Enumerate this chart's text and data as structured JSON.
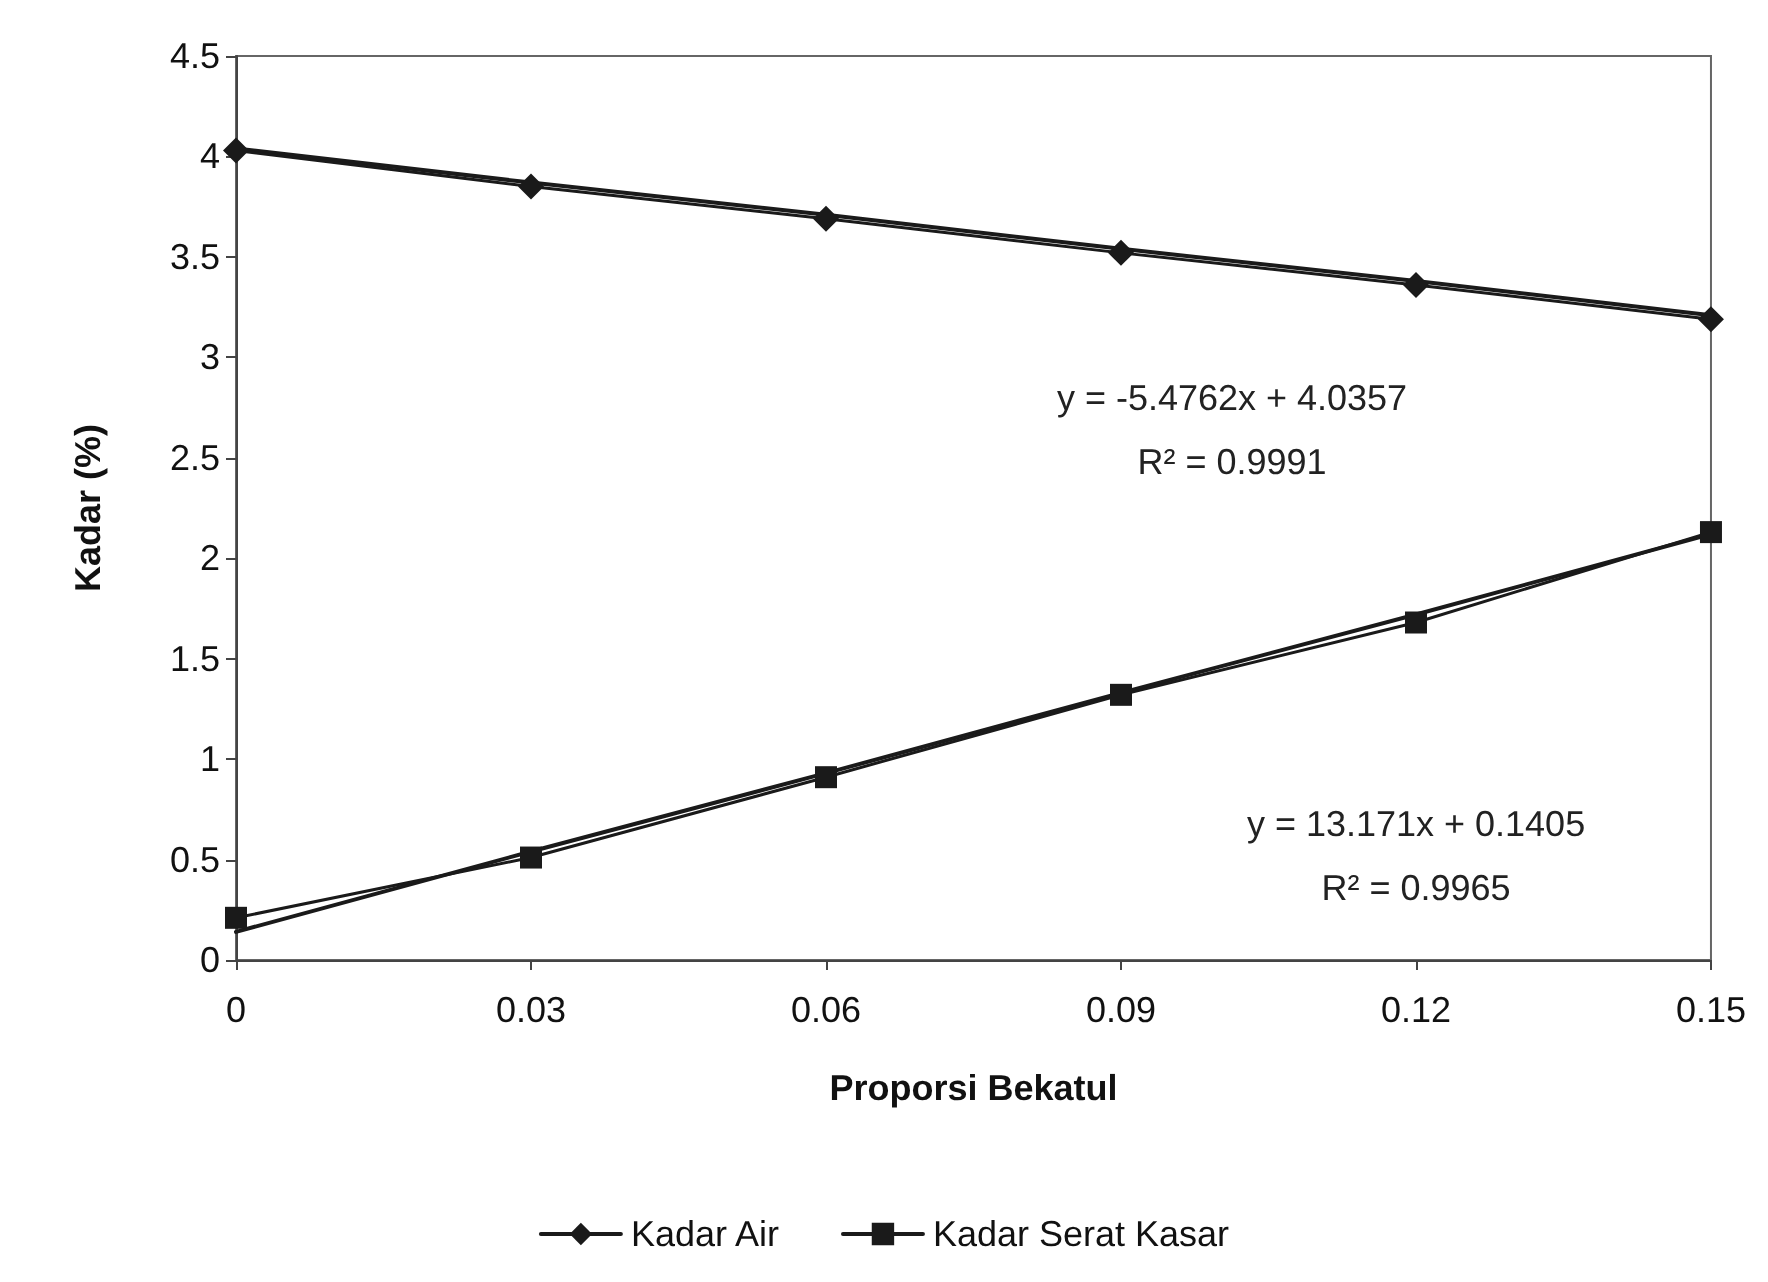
{
  "chart_data": {
    "type": "line",
    "xlabel": "Proporsi Bekatul",
    "ylabel": "Kadar (%)",
    "x": [
      0,
      0.03,
      0.06,
      0.09,
      0.12,
      0.15
    ],
    "xlim": [
      0,
      0.15
    ],
    "xticks": [
      0,
      0.03,
      0.06,
      0.09,
      0.12,
      0.15
    ],
    "ylim": [
      0,
      4.5
    ],
    "yticks": [
      0,
      0.5,
      1,
      1.5,
      2,
      2.5,
      3,
      3.5,
      4,
      4.5
    ],
    "grid": false,
    "legend": "bottom",
    "line_style": "solid",
    "series": [
      {
        "name": "Kadar Air",
        "color": "#1a1a1a",
        "marker": "diamond",
        "values": [
          4.03,
          3.85,
          3.69,
          3.52,
          3.36,
          3.19
        ]
      },
      {
        "name": "Kadar Serat Kasar",
        "color": "#1a1a1a",
        "marker": "square",
        "values": [
          0.21,
          0.51,
          0.91,
          1.32,
          1.68,
          2.13
        ]
      },
      {
        "type": "line",
        "color": "#1a1a1a",
        "marker": "none",
        "values": [
          4.04,
          3.87,
          3.71,
          3.54,
          3.38,
          3.21
        ]
      },
      {
        "type": "line",
        "color": "#1a1a1a",
        "marker": "none",
        "values": [
          0.14,
          0.54,
          0.93,
          1.33,
          1.72,
          2.12
        ]
      }
    ],
    "annotations": [
      "y = -5.4762x + 4.0357\nR² = 0.9991",
      "y = 13.171x + 0.1405\nR² = 0.9965"
    ]
  }
}
